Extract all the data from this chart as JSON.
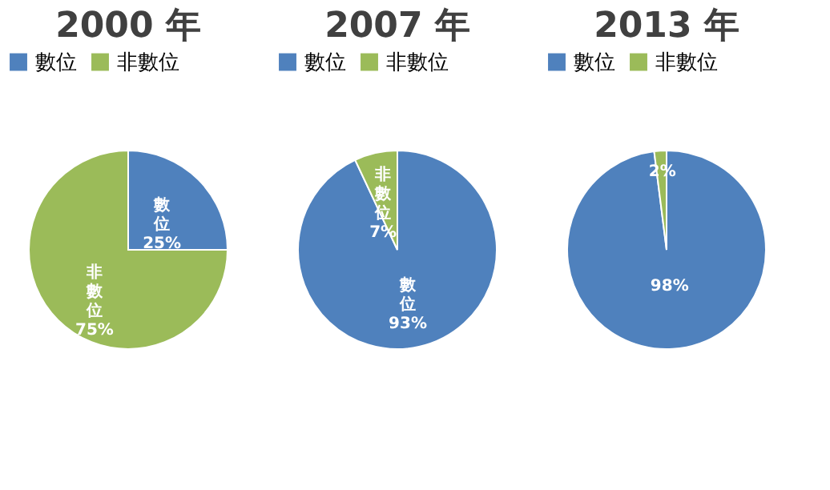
{
  "chart_data": [
    {
      "type": "pie",
      "title": "2000 年",
      "categories": [
        "數位",
        "非數位"
      ],
      "values": [
        25,
        75
      ],
      "colors": [
        "#4f81bd",
        "#9bbb59"
      ],
      "value_labels": [
        "數位25%",
        "非數位75%"
      ],
      "legend": "top"
    },
    {
      "type": "pie",
      "title": "2007 年",
      "categories": [
        "數位",
        "非數位"
      ],
      "values": [
        93,
        7
      ],
      "colors": [
        "#4f81bd",
        "#9bbb59"
      ],
      "value_labels": [
        "數位93%",
        "非數位7%"
      ],
      "legend": "top"
    },
    {
      "type": "pie",
      "title": "2013 年",
      "categories": [
        "數位",
        "非數位"
      ],
      "values": [
        98,
        2
      ],
      "colors": [
        "#4f81bd",
        "#9bbb59"
      ],
      "value_labels": [
        "98%",
        "2%"
      ],
      "legend": "top"
    }
  ]
}
